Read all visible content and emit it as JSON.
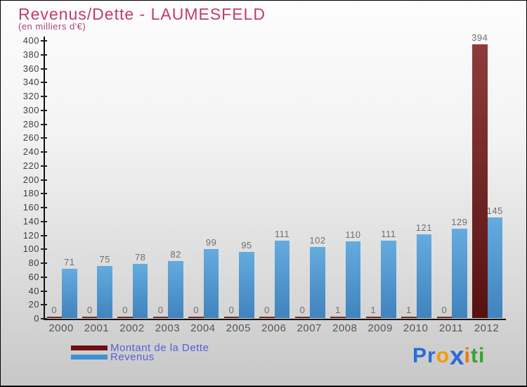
{
  "header": {
    "title": "Revenus/Dette - LAUMESFELD",
    "subtitle": "(en milliers d'€)",
    "title_color": "#c23b6c",
    "subtitle_color": "#a8457f"
  },
  "chart_data": {
    "type": "bar",
    "title": "Revenus/Dette - LAUMESFELD",
    "subtitle": "(en milliers d'€)",
    "unit": "milliers d'€",
    "categories": [
      "2000",
      "2001",
      "2002",
      "2003",
      "2004",
      "2005",
      "2006",
      "2007",
      "2008",
      "2009",
      "2010",
      "2011",
      "2012"
    ],
    "series": [
      {
        "name": "Montant de la Dette",
        "values": [
          0,
          0,
          0,
          0,
          0,
          0,
          0,
          0,
          1,
          1,
          1,
          0,
          394
        ],
        "color_top": "#8d3c3c",
        "color_bottom": "#571111",
        "legend_color": "#701010"
      },
      {
        "name": "Revenus",
        "values": [
          71,
          75,
          78,
          82,
          99,
          95,
          111,
          102,
          110,
          111,
          121,
          129,
          145
        ],
        "color_top": "#65abdf",
        "color_bottom": "#4083be",
        "legend_color": "#3f8fd2"
      }
    ],
    "ylim": [
      0,
      400
    ],
    "ytick_step": 20,
    "grid": false,
    "legend_position": "bottom-left",
    "value_labels": true
  },
  "logo": {
    "text": "Proxiti",
    "letters": [
      {
        "ch": "P",
        "color": "#2a6cd8"
      },
      {
        "ch": "r",
        "color": "#2a6cd8"
      },
      {
        "ch": "o",
        "color": "#f59a00"
      },
      {
        "ch": "x",
        "color": "#2a6cd8",
        "big": true
      },
      {
        "ch": "i",
        "color": "#f07800"
      },
      {
        "ch": "t",
        "color": "#33a433"
      },
      {
        "ch": "i",
        "color": "#33a433"
      }
    ]
  }
}
